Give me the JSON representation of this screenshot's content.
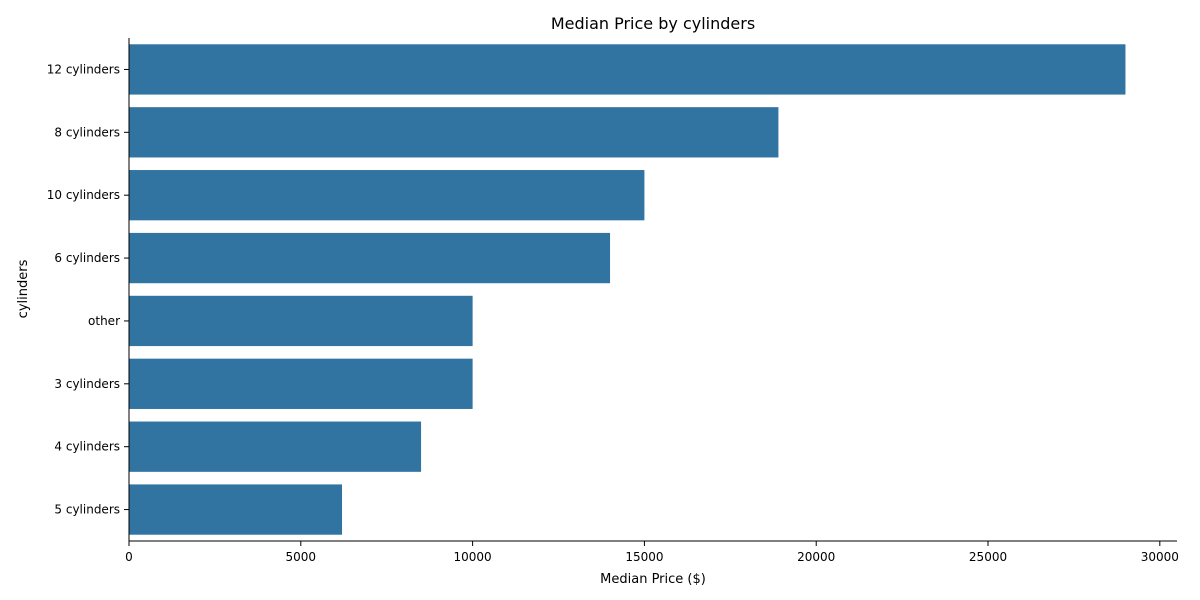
{
  "chart_data": {
    "type": "bar",
    "orientation": "horizontal",
    "title": "Median Price by cylinders",
    "xlabel": "Median Price ($)",
    "ylabel": "cylinders",
    "categories": [
      "12 cylinders",
      "8 cylinders",
      "10 cylinders",
      "6 cylinders",
      "other",
      "3 cylinders",
      "4 cylinders",
      "5 cylinders"
    ],
    "values": [
      29000,
      18900,
      15000,
      14000,
      10000,
      10000,
      8500,
      6200
    ],
    "xlim": [
      0,
      30500
    ],
    "x_ticks": [
      0,
      5000,
      10000,
      15000,
      20000,
      25000,
      30000
    ],
    "grid": false,
    "legend": "none",
    "bar_color": "#3274a1"
  }
}
